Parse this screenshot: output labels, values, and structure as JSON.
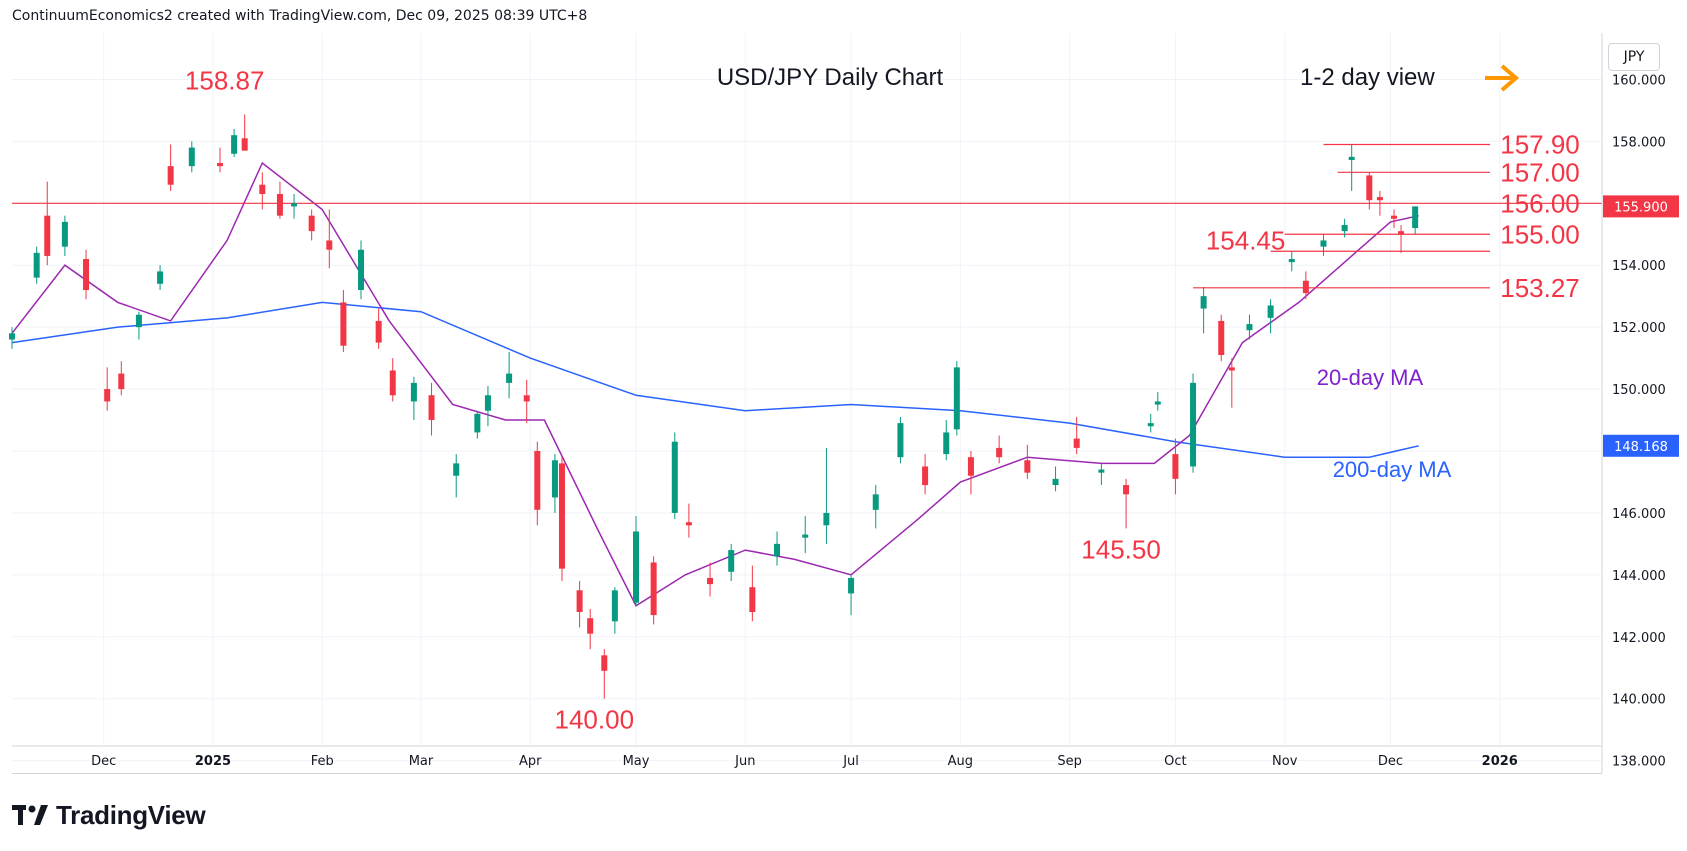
{
  "header": {
    "attribution": "ContinuumEconomics2 created with TradingView.com, Dec 09, 2025 08:39 UTC+8"
  },
  "currency_button": "JPY",
  "brand": {
    "name": "TradingView"
  },
  "colors": {
    "up": "#089981",
    "down": "#f23645",
    "ma20": "#9c27b0",
    "ma200": "#2962ff",
    "annotation": "#f23645",
    "arrow": "#ff9800",
    "grid": "#f0f3fa",
    "text": "#131722"
  },
  "chart_data": {
    "type": "candlestick",
    "title": "USD/JPY Daily Chart",
    "subtitle": "1-2 day view",
    "ylim": [
      137.6,
      161.5
    ],
    "y_ticks": [
      "138.000",
      "140.000",
      "142.000",
      "144.000",
      "146.000",
      "148.000",
      "150.000",
      "152.000",
      "154.000",
      "156.000",
      "158.000",
      "160.000"
    ],
    "x_ticks": [
      {
        "label": "Dec",
        "date": "2024-12-01"
      },
      {
        "label": "2025",
        "date": "2025-01-01"
      },
      {
        "label": "Feb",
        "date": "2025-02-01"
      },
      {
        "label": "Mar",
        "date": "2025-03-01"
      },
      {
        "label": "Apr",
        "date": "2025-04-01"
      },
      {
        "label": "May",
        "date": "2025-05-01"
      },
      {
        "label": "Jun",
        "date": "2025-06-01"
      },
      {
        "label": "Jul",
        "date": "2025-07-01"
      },
      {
        "label": "Aug",
        "date": "2025-08-01"
      },
      {
        "label": "Sep",
        "date": "2025-09-01"
      },
      {
        "label": "Oct",
        "date": "2025-10-01"
      },
      {
        "label": "Nov",
        "date": "2025-11-01"
      },
      {
        "label": "Dec",
        "date": "2025-12-01"
      },
      {
        "label": "2026",
        "date": "2026-01-01"
      }
    ],
    "x_range": [
      "2024-11-05",
      "2026-01-30"
    ],
    "last_price": "155.900",
    "ma200_value": "148.168",
    "series": [
      {
        "name": "20-day MA",
        "color": "#9c27b0",
        "dates": [
          "2024-11-05",
          "2024-11-20",
          "2024-12-05",
          "2024-12-20",
          "2025-01-05",
          "2025-01-15",
          "2025-02-01",
          "2025-02-20",
          "2025-03-10",
          "2025-03-25",
          "2025-04-05",
          "2025-04-20",
          "2025-05-01",
          "2025-05-15",
          "2025-06-01",
          "2025-06-15",
          "2025-07-01",
          "2025-07-20",
          "2025-08-01",
          "2025-08-20",
          "2025-09-10",
          "2025-09-25",
          "2025-10-05",
          "2025-10-20",
          "2025-11-05",
          "2025-11-20",
          "2025-12-01",
          "2025-12-09"
        ],
        "values": [
          151.8,
          154.0,
          152.8,
          152.2,
          154.8,
          157.3,
          155.8,
          152.2,
          149.5,
          149.0,
          149.0,
          145.5,
          143.0,
          144.0,
          144.8,
          144.5,
          144.0,
          145.8,
          147.0,
          147.8,
          147.6,
          147.6,
          148.5,
          151.5,
          152.8,
          154.3,
          155.4,
          155.6
        ]
      },
      {
        "name": "200-day MA",
        "color": "#2962ff",
        "dates": [
          "2024-11-05",
          "2024-12-05",
          "2025-01-05",
          "2025-02-01",
          "2025-03-01",
          "2025-04-01",
          "2025-05-01",
          "2025-06-01",
          "2025-07-01",
          "2025-08-01",
          "2025-09-01",
          "2025-10-01",
          "2025-11-01",
          "2025-11-25",
          "2025-12-09"
        ],
        "values": [
          151.5,
          152.0,
          152.3,
          152.8,
          152.5,
          151.0,
          149.8,
          149.3,
          149.5,
          149.3,
          148.9,
          148.3,
          147.8,
          147.8,
          148.168
        ]
      }
    ],
    "candles": [
      {
        "d": "2024-11-05",
        "o": 151.6,
        "h": 152.0,
        "l": 151.3,
        "c": 151.8
      },
      {
        "d": "2024-11-12",
        "o": 153.6,
        "h": 154.6,
        "l": 153.4,
        "c": 154.4
      },
      {
        "d": "2024-11-15",
        "o": 155.6,
        "h": 156.7,
        "l": 154.0,
        "c": 154.3
      },
      {
        "d": "2024-11-20",
        "o": 154.6,
        "h": 155.6,
        "l": 154.3,
        "c": 155.4
      },
      {
        "d": "2024-11-26",
        "o": 154.2,
        "h": 154.5,
        "l": 152.9,
        "c": 153.2
      },
      {
        "d": "2024-12-02",
        "o": 150.0,
        "h": 150.7,
        "l": 149.3,
        "c": 149.6
      },
      {
        "d": "2024-12-06",
        "o": 150.5,
        "h": 150.9,
        "l": 149.8,
        "c": 150.0
      },
      {
        "d": "2024-12-11",
        "o": 152.0,
        "h": 152.5,
        "l": 151.6,
        "c": 152.4
      },
      {
        "d": "2024-12-17",
        "o": 153.4,
        "h": 154.0,
        "l": 153.2,
        "c": 153.8
      },
      {
        "d": "2024-12-20",
        "o": 157.2,
        "h": 157.9,
        "l": 156.4,
        "c": 156.6
      },
      {
        "d": "2024-12-26",
        "o": 157.2,
        "h": 158.0,
        "l": 157.0,
        "c": 157.8
      },
      {
        "d": "2025-01-03",
        "o": 157.3,
        "h": 157.8,
        "l": 157.0,
        "c": 157.2
      },
      {
        "d": "2025-01-07",
        "o": 157.6,
        "h": 158.4,
        "l": 157.5,
        "c": 158.2
      },
      {
        "d": "2025-01-10",
        "o": 158.1,
        "h": 158.87,
        "l": 157.7,
        "c": 157.7
      },
      {
        "d": "2025-01-15",
        "o": 156.6,
        "h": 157.0,
        "l": 155.8,
        "c": 156.3
      },
      {
        "d": "2025-01-20",
        "o": 156.3,
        "h": 156.7,
        "l": 155.5,
        "c": 155.6
      },
      {
        "d": "2025-01-24",
        "o": 155.9,
        "h": 156.3,
        "l": 155.5,
        "c": 156.0
      },
      {
        "d": "2025-01-29",
        "o": 155.6,
        "h": 155.8,
        "l": 154.8,
        "c": 155.1
      },
      {
        "d": "2025-02-03",
        "o": 154.8,
        "h": 155.8,
        "l": 153.9,
        "c": 154.5
      },
      {
        "d": "2025-02-07",
        "o": 152.8,
        "h": 153.2,
        "l": 151.2,
        "c": 151.4
      },
      {
        "d": "2025-02-12",
        "o": 153.2,
        "h": 154.8,
        "l": 152.9,
        "c": 154.5
      },
      {
        "d": "2025-02-17",
        "o": 152.2,
        "h": 152.6,
        "l": 151.3,
        "c": 151.5
      },
      {
        "d": "2025-02-21",
        "o": 150.6,
        "h": 151.0,
        "l": 149.6,
        "c": 149.8
      },
      {
        "d": "2025-02-27",
        "o": 149.6,
        "h": 150.4,
        "l": 149.0,
        "c": 150.2
      },
      {
        "d": "2025-03-04",
        "o": 149.8,
        "h": 150.2,
        "l": 148.5,
        "c": 149.0
      },
      {
        "d": "2025-03-11",
        "o": 147.2,
        "h": 147.9,
        "l": 146.5,
        "c": 147.6
      },
      {
        "d": "2025-03-17",
        "o": 148.6,
        "h": 149.3,
        "l": 148.4,
        "c": 149.2
      },
      {
        "d": "2025-03-20",
        "o": 149.3,
        "h": 150.1,
        "l": 148.8,
        "c": 149.8
      },
      {
        "d": "2025-03-26",
        "o": 150.2,
        "h": 151.2,
        "l": 149.7,
        "c": 150.5
      },
      {
        "d": "2025-03-31",
        "o": 149.8,
        "h": 150.3,
        "l": 148.9,
        "c": 149.6
      },
      {
        "d": "2025-04-03",
        "o": 148.0,
        "h": 148.3,
        "l": 145.6,
        "c": 146.1
      },
      {
        "d": "2025-04-08",
        "o": 146.5,
        "h": 147.9,
        "l": 146.0,
        "c": 147.7
      },
      {
        "d": "2025-04-10",
        "o": 147.6,
        "h": 147.8,
        "l": 143.8,
        "c": 144.2
      },
      {
        "d": "2025-04-15",
        "o": 143.5,
        "h": 143.8,
        "l": 142.3,
        "c": 142.8
      },
      {
        "d": "2025-04-18",
        "o": 142.6,
        "h": 142.9,
        "l": 141.6,
        "c": 142.1
      },
      {
        "d": "2025-04-22",
        "o": 141.4,
        "h": 141.6,
        "l": 140.0,
        "c": 140.9
      },
      {
        "d": "2025-04-25",
        "o": 142.5,
        "h": 143.6,
        "l": 142.1,
        "c": 143.5
      },
      {
        "d": "2025-05-01",
        "o": 143.1,
        "h": 145.9,
        "l": 143.0,
        "c": 145.4
      },
      {
        "d": "2025-05-06",
        "o": 144.4,
        "h": 144.6,
        "l": 142.4,
        "c": 142.7
      },
      {
        "d": "2025-05-12",
        "o": 146.0,
        "h": 148.6,
        "l": 145.8,
        "c": 148.3
      },
      {
        "d": "2025-05-16",
        "o": 145.7,
        "h": 146.3,
        "l": 145.2,
        "c": 145.6
      },
      {
        "d": "2025-05-22",
        "o": 143.9,
        "h": 144.4,
        "l": 143.3,
        "c": 143.7
      },
      {
        "d": "2025-05-28",
        "o": 144.1,
        "h": 145.0,
        "l": 143.8,
        "c": 144.8
      },
      {
        "d": "2025-06-03",
        "o": 143.6,
        "h": 144.3,
        "l": 142.5,
        "c": 142.8
      },
      {
        "d": "2025-06-10",
        "o": 144.6,
        "h": 145.4,
        "l": 144.3,
        "c": 145.0
      },
      {
        "d": "2025-06-18",
        "o": 145.2,
        "h": 145.9,
        "l": 144.7,
        "c": 145.3
      },
      {
        "d": "2025-06-24",
        "o": 145.6,
        "h": 148.1,
        "l": 145.0,
        "c": 146.0
      },
      {
        "d": "2025-07-01",
        "o": 143.4,
        "h": 144.0,
        "l": 142.7,
        "c": 143.9
      },
      {
        "d": "2025-07-08",
        "o": 146.1,
        "h": 146.9,
        "l": 145.5,
        "c": 146.6
      },
      {
        "d": "2025-07-15",
        "o": 147.8,
        "h": 149.1,
        "l": 147.6,
        "c": 148.9
      },
      {
        "d": "2025-07-22",
        "o": 147.5,
        "h": 147.9,
        "l": 146.6,
        "c": 146.9
      },
      {
        "d": "2025-07-28",
        "o": 147.9,
        "h": 149.0,
        "l": 147.7,
        "c": 148.6
      },
      {
        "d": "2025-07-31",
        "o": 148.7,
        "h": 150.9,
        "l": 148.5,
        "c": 150.7
      },
      {
        "d": "2025-08-04",
        "o": 147.8,
        "h": 148.0,
        "l": 146.6,
        "c": 147.2
      },
      {
        "d": "2025-08-12",
        "o": 148.1,
        "h": 148.5,
        "l": 147.6,
        "c": 147.8
      },
      {
        "d": "2025-08-20",
        "o": 147.7,
        "h": 148.2,
        "l": 147.1,
        "c": 147.3
      },
      {
        "d": "2025-08-28",
        "o": 146.9,
        "h": 147.5,
        "l": 146.7,
        "c": 147.1
      },
      {
        "d": "2025-09-03",
        "o": 148.4,
        "h": 149.1,
        "l": 147.9,
        "c": 148.1
      },
      {
        "d": "2025-09-10",
        "o": 147.3,
        "h": 147.6,
        "l": 146.9,
        "c": 147.4
      },
      {
        "d": "2025-09-17",
        "o": 146.9,
        "h": 147.1,
        "l": 145.5,
        "c": 146.6
      },
      {
        "d": "2025-09-24",
        "o": 148.8,
        "h": 149.2,
        "l": 148.6,
        "c": 148.9
      },
      {
        "d": "2025-09-26",
        "o": 149.5,
        "h": 149.9,
        "l": 149.3,
        "c": 149.6
      },
      {
        "d": "2025-10-01",
        "o": 147.9,
        "h": 148.4,
        "l": 146.6,
        "c": 147.1
      },
      {
        "d": "2025-10-06",
        "o": 147.5,
        "h": 150.5,
        "l": 147.3,
        "c": 150.2
      },
      {
        "d": "2025-10-09",
        "o": 152.6,
        "h": 153.3,
        "l": 151.8,
        "c": 153.0
      },
      {
        "d": "2025-10-14",
        "o": 152.2,
        "h": 152.4,
        "l": 150.9,
        "c": 151.1
      },
      {
        "d": "2025-10-17",
        "o": 150.7,
        "h": 151.0,
        "l": 149.4,
        "c": 150.6
      },
      {
        "d": "2025-10-22",
        "o": 151.9,
        "h": 152.4,
        "l": 151.6,
        "c": 152.1
      },
      {
        "d": "2025-10-28",
        "o": 152.3,
        "h": 152.9,
        "l": 151.8,
        "c": 152.7
      },
      {
        "d": "2025-11-03",
        "o": 154.1,
        "h": 154.45,
        "l": 153.8,
        "c": 154.2
      },
      {
        "d": "2025-11-07",
        "o": 153.5,
        "h": 153.8,
        "l": 152.9,
        "c": 153.1
      },
      {
        "d": "2025-11-12",
        "o": 154.6,
        "h": 155.0,
        "l": 154.3,
        "c": 154.8
      },
      {
        "d": "2025-11-18",
        "o": 155.1,
        "h": 155.5,
        "l": 154.9,
        "c": 155.3
      },
      {
        "d": "2025-11-20",
        "o": 157.4,
        "h": 157.9,
        "l": 156.4,
        "c": 157.5
      },
      {
        "d": "2025-11-25",
        "o": 156.9,
        "h": 157.0,
        "l": 155.8,
        "c": 156.1
      },
      {
        "d": "2025-11-28",
        "o": 156.2,
        "h": 156.4,
        "l": 155.6,
        "c": 156.1
      },
      {
        "d": "2025-12-02",
        "o": 155.6,
        "h": 155.8,
        "l": 155.2,
        "c": 155.5
      },
      {
        "d": "2025-12-04",
        "o": 155.1,
        "h": 155.3,
        "l": 154.4,
        "c": 155.0
      },
      {
        "d": "2025-12-08",
        "o": 155.2,
        "h": 155.9,
        "l": 155.0,
        "c": 155.9
      }
    ],
    "annotations": [
      {
        "text": "158.87",
        "d": "2025-01-10",
        "y": 158.87
      },
      {
        "text": "140.00",
        "d": "2025-04-22",
        "y": 140.0
      },
      {
        "text": "145.50",
        "d": "2025-09-17",
        "y": 145.5
      },
      {
        "text": "154.45",
        "d": "2025-10-28",
        "y": 154.45
      },
      {
        "text": "157.90",
        "y": 157.9
      },
      {
        "text": "157.00",
        "y": 157.0
      },
      {
        "text": "156.00",
        "y": 156.0
      },
      {
        "text": "155.00",
        "y": 155.0
      },
      {
        "text": "153.27",
        "y": 153.27
      },
      {
        "text": "20-day MA",
        "color": "#7e22ce"
      },
      {
        "text": "200-day MA",
        "color": "#2962ff"
      }
    ],
    "levels": [
      {
        "y": 157.9,
        "from": "2025-11-12"
      },
      {
        "y": 157.0,
        "from": "2025-11-16"
      },
      {
        "y": 156.0,
        "from": "2024-11-05"
      },
      {
        "y": 155.0,
        "from": "2025-11-01"
      },
      {
        "y": 154.45,
        "from": "2025-10-28"
      },
      {
        "y": 153.27,
        "from": "2025-10-06"
      }
    ]
  }
}
